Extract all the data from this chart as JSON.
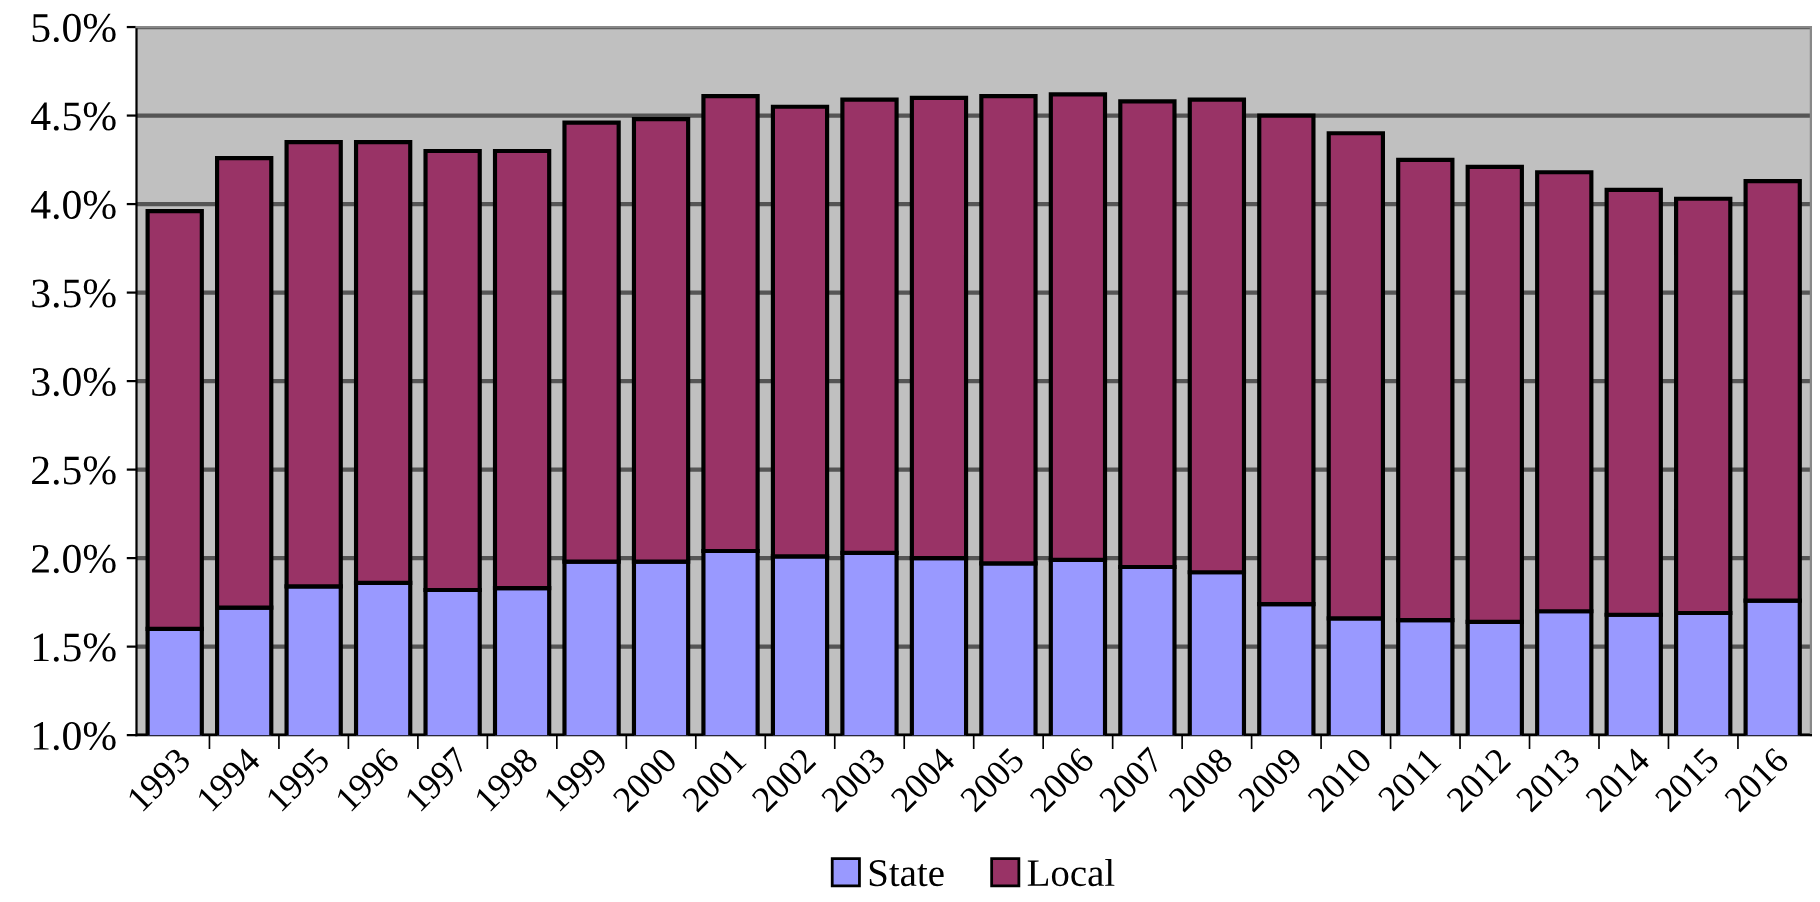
{
  "chart_data": {
    "type": "bar",
    "stacked": true,
    "categories": [
      "1993",
      "1994",
      "1995",
      "1996",
      "1997",
      "1998",
      "1999",
      "2000",
      "2001",
      "2002",
      "2003",
      "2004",
      "2005",
      "2006",
      "2007",
      "2008",
      "2009",
      "2010",
      "2011",
      "2012",
      "2013",
      "2014",
      "2015",
      "2016"
    ],
    "series": [
      {
        "name": "State",
        "color": "#9999ff",
        "values": [
          1.6,
          1.72,
          1.84,
          1.86,
          1.82,
          1.83,
          1.98,
          1.98,
          2.04,
          2.01,
          2.03,
          2.0,
          1.97,
          1.99,
          1.95,
          1.92,
          1.74,
          1.66,
          1.65,
          1.64,
          1.7,
          1.68,
          1.69,
          1.76
        ]
      },
      {
        "name": "Local",
        "color": "#993366",
        "values": [
          2.36,
          2.54,
          2.51,
          2.49,
          2.48,
          2.47,
          2.48,
          2.5,
          2.57,
          2.54,
          2.56,
          2.6,
          2.64,
          2.63,
          2.63,
          2.67,
          2.76,
          2.74,
          2.6,
          2.57,
          2.48,
          2.4,
          2.34,
          2.37
        ]
      }
    ],
    "ylim": [
      1.0,
      5.0
    ],
    "yticks": [
      {
        "value": 1.0,
        "label": "1.0%"
      },
      {
        "value": 1.5,
        "label": "1.5%"
      },
      {
        "value": 2.0,
        "label": "2.0%"
      },
      {
        "value": 2.5,
        "label": "2.5%"
      },
      {
        "value": 3.0,
        "label": "3.0%"
      },
      {
        "value": 3.5,
        "label": "3.5%"
      },
      {
        "value": 4.0,
        "label": "4.0%"
      },
      {
        "value": 4.5,
        "label": "4.5%"
      },
      {
        "value": 5.0,
        "label": "5.0%"
      }
    ],
    "grid": "y",
    "legend": "bottom"
  }
}
